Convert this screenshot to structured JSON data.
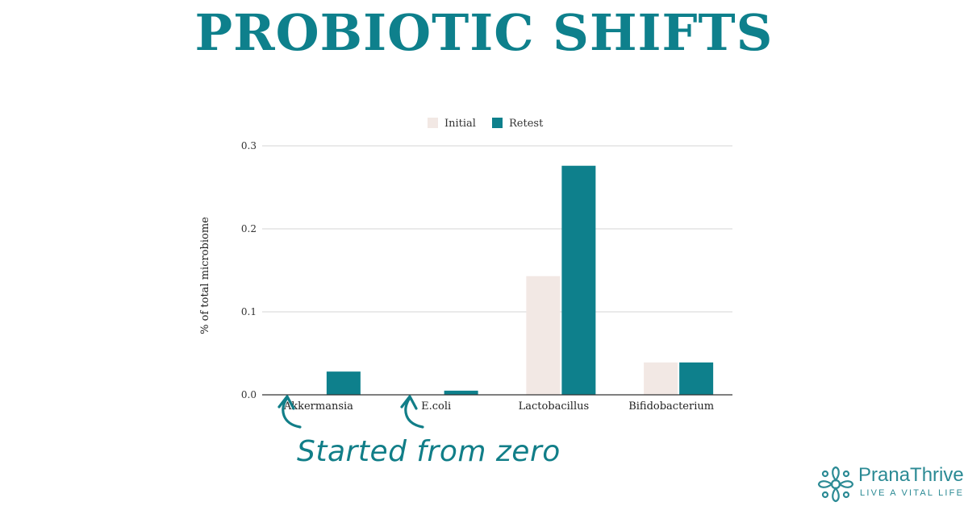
{
  "header": {
    "title": "PROBIOTIC SHIFTS"
  },
  "annotation": {
    "text": "Started from zero"
  },
  "brand": {
    "name": "PranaThrive",
    "tagline": "LIVE A VITAL LIFE",
    "color": "#2b8a94"
  },
  "chart_data": {
    "type": "bar",
    "title": "",
    "xlabel": "",
    "ylabel": "% of total microbiome",
    "categories": [
      "Akkermansia",
      "E.coli",
      "Lactobacillus",
      "Bifidobacterium"
    ],
    "series": [
      {
        "name": "Initial",
        "values": [
          0,
          0,
          0.143,
          0.039
        ],
        "color": "#f2e8e4"
      },
      {
        "name": "Retest",
        "values": [
          0.028,
          0.005,
          0.276,
          0.039
        ],
        "color": "#0e808c"
      }
    ],
    "ylim": [
      0,
      0.3
    ],
    "yticks": [
      "0.0",
      "0.1",
      "0.2",
      "0.3"
    ],
    "grid": true,
    "legend_position": "top-center"
  }
}
